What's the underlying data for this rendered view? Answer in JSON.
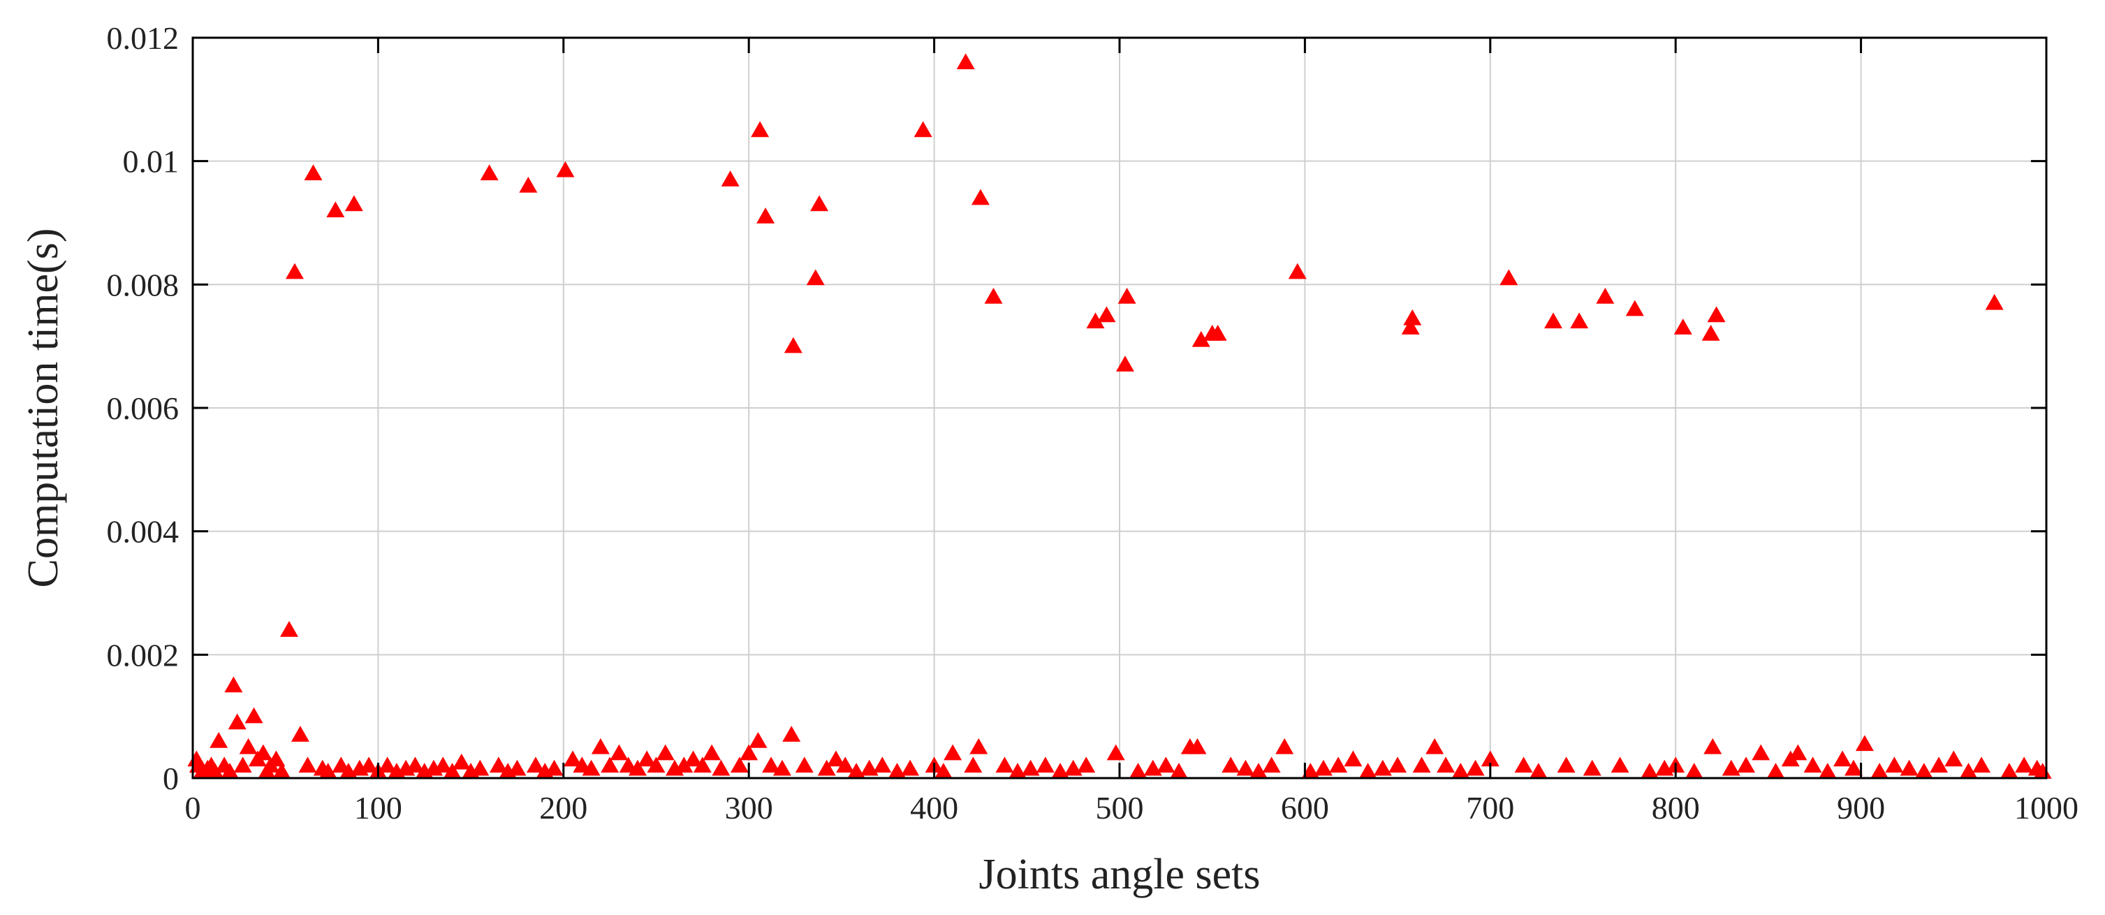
{
  "chart_data": {
    "type": "scatter",
    "xlabel": "Joints angle sets",
    "ylabel": "Computation time(s)",
    "xlim": [
      0,
      1000
    ],
    "ylim": [
      0,
      0.012
    ],
    "x_ticks": [
      "0",
      "100",
      "200",
      "300",
      "400",
      "500",
      "600",
      "700",
      "800",
      "900",
      "1000"
    ],
    "y_ticks": [
      "0",
      "0.002",
      "0.004",
      "0.006",
      "0.008",
      "0.01",
      "0.012"
    ],
    "grid": true,
    "marker": "triangle",
    "marker_color": "#ff0000",
    "series": [
      {
        "points": [
          [
            2,
            0.0003
          ],
          [
            3,
            0.0002
          ],
          [
            5,
            0.0001
          ],
          [
            8,
            0.00015
          ],
          [
            10,
            0.0002
          ],
          [
            12,
            0.0001
          ],
          [
            14,
            0.0006
          ],
          [
            17,
            0.0002
          ],
          [
            20,
            0.0001
          ],
          [
            22,
            0.0015
          ],
          [
            24,
            0.0009
          ],
          [
            27,
            0.0002
          ],
          [
            30,
            0.0005
          ],
          [
            33,
            0.001
          ],
          [
            35,
            0.0003
          ],
          [
            38,
            0.0004
          ],
          [
            40,
            0.0001
          ],
          [
            42,
            0.0002
          ],
          [
            45,
            0.0003
          ],
          [
            48,
            0.0001
          ],
          [
            52,
            0.0024
          ],
          [
            55,
            0.0082
          ],
          [
            58,
            0.0007
          ],
          [
            62,
            0.0002
          ],
          [
            65,
            0.0098
          ],
          [
            70,
            0.00015
          ],
          [
            73,
            0.0001
          ],
          [
            77,
            0.0092
          ],
          [
            80,
            0.0002
          ],
          [
            84,
            0.0001
          ],
          [
            87,
            0.0093
          ],
          [
            90,
            0.00015
          ],
          [
            95,
            0.0002
          ],
          [
            100,
            0.0001
          ],
          [
            105,
            0.0002
          ],
          [
            110,
            0.0001
          ],
          [
            115,
            0.00015
          ],
          [
            120,
            0.0002
          ],
          [
            125,
            0.0001
          ],
          [
            130,
            0.00015
          ],
          [
            135,
            0.0002
          ],
          [
            140,
            0.0001
          ],
          [
            145,
            0.00025
          ],
          [
            150,
            0.0001
          ],
          [
            155,
            0.00015
          ],
          [
            160,
            0.0098
          ],
          [
            165,
            0.0002
          ],
          [
            170,
            0.0001
          ],
          [
            175,
            0.00015
          ],
          [
            181,
            0.0096
          ],
          [
            185,
            0.0002
          ],
          [
            190,
            0.0001
          ],
          [
            195,
            0.00015
          ],
          [
            201,
            0.00985
          ],
          [
            205,
            0.0003
          ],
          [
            210,
            0.0002
          ],
          [
            215,
            0.00015
          ],
          [
            220,
            0.0005
          ],
          [
            225,
            0.0002
          ],
          [
            230,
            0.0004
          ],
          [
            235,
            0.0002
          ],
          [
            240,
            0.00015
          ],
          [
            245,
            0.0003
          ],
          [
            250,
            0.0002
          ],
          [
            255,
            0.0004
          ],
          [
            260,
            0.00015
          ],
          [
            265,
            0.0002
          ],
          [
            270,
            0.0003
          ],
          [
            275,
            0.0002
          ],
          [
            280,
            0.0004
          ],
          [
            285,
            0.00015
          ],
          [
            290,
            0.0097
          ],
          [
            295,
            0.0002
          ],
          [
            300,
            0.0004
          ],
          [
            305,
            0.0006
          ],
          [
            306,
            0.0105
          ],
          [
            309,
            0.0091
          ],
          [
            312,
            0.0002
          ],
          [
            318,
            0.00015
          ],
          [
            323,
            0.0007
          ],
          [
            324,
            0.007
          ],
          [
            330,
            0.0002
          ],
          [
            336,
            0.0081
          ],
          [
            338,
            0.0093
          ],
          [
            342,
            0.00015
          ],
          [
            347,
            0.0003
          ],
          [
            352,
            0.0002
          ],
          [
            358,
            0.0001
          ],
          [
            365,
            0.00015
          ],
          [
            372,
            0.0002
          ],
          [
            380,
            0.0001
          ],
          [
            387,
            0.00015
          ],
          [
            394,
            0.0105
          ],
          [
            400,
            0.0002
          ],
          [
            405,
            0.0001
          ],
          [
            410,
            0.0004
          ],
          [
            417,
            0.0116
          ],
          [
            421,
            0.0002
          ],
          [
            424,
            0.0005
          ],
          [
            425,
            0.0094
          ],
          [
            432,
            0.0078
          ],
          [
            438,
            0.0002
          ],
          [
            445,
            0.0001
          ],
          [
            452,
            0.00015
          ],
          [
            460,
            0.0002
          ],
          [
            468,
            0.0001
          ],
          [
            475,
            0.00015
          ],
          [
            482,
            0.0002
          ],
          [
            487,
            0.0074
          ],
          [
            493,
            0.0075
          ],
          [
            498,
            0.0004
          ],
          [
            503,
            0.0067
          ],
          [
            504,
            0.0078
          ],
          [
            510,
            0.0001
          ],
          [
            518,
            0.00015
          ],
          [
            525,
            0.0002
          ],
          [
            532,
            0.0001
          ],
          [
            538,
            0.0005
          ],
          [
            542,
            0.0005
          ],
          [
            544,
            0.0071
          ],
          [
            550,
            0.0072
          ],
          [
            553,
            0.0072
          ],
          [
            560,
            0.0002
          ],
          [
            568,
            0.00015
          ],
          [
            575,
            0.0001
          ],
          [
            582,
            0.0002
          ],
          [
            589,
            0.0005
          ],
          [
            596,
            0.0082
          ],
          [
            603,
            0.0001
          ],
          [
            610,
            0.00015
          ],
          [
            618,
            0.0002
          ],
          [
            626,
            0.0003
          ],
          [
            634,
            0.0001
          ],
          [
            642,
            0.00015
          ],
          [
            650,
            0.0002
          ],
          [
            657,
            0.0073
          ],
          [
            658,
            0.00745
          ],
          [
            663,
            0.0002
          ],
          [
            670,
            0.0005
          ],
          [
            676,
            0.0002
          ],
          [
            684,
            0.0001
          ],
          [
            692,
            0.00015
          ],
          [
            700,
            0.0003
          ],
          [
            710,
            0.0081
          ],
          [
            718,
            0.0002
          ],
          [
            726,
            0.0001
          ],
          [
            734,
            0.0074
          ],
          [
            741,
            0.0002
          ],
          [
            748,
            0.0074
          ],
          [
            755,
            0.00015
          ],
          [
            762,
            0.0078
          ],
          [
            770,
            0.0002
          ],
          [
            778,
            0.0076
          ],
          [
            786,
            0.0001
          ],
          [
            794,
            0.00015
          ],
          [
            800,
            0.0002
          ],
          [
            804,
            0.0073
          ],
          [
            810,
            0.0001
          ],
          [
            819,
            0.0072
          ],
          [
            820,
            0.0005
          ],
          [
            822,
            0.0075
          ],
          [
            830,
            0.00015
          ],
          [
            838,
            0.0002
          ],
          [
            846,
            0.0004
          ],
          [
            854,
            0.0001
          ],
          [
            862,
            0.0003
          ],
          [
            866,
            0.0004
          ],
          [
            874,
            0.0002
          ],
          [
            882,
            0.0001
          ],
          [
            890,
            0.0003
          ],
          [
            896,
            0.00015
          ],
          [
            902,
            0.00055
          ],
          [
            910,
            0.0001
          ],
          [
            918,
            0.0002
          ],
          [
            926,
            0.00015
          ],
          [
            934,
            0.0001
          ],
          [
            942,
            0.0002
          ],
          [
            950,
            0.0003
          ],
          [
            958,
            0.0001
          ],
          [
            965,
            0.0002
          ],
          [
            972,
            0.0077
          ],
          [
            980,
            0.0001
          ],
          [
            988,
            0.0002
          ],
          [
            995,
            0.00015
          ],
          [
            998,
            0.0001
          ]
        ]
      }
    ]
  }
}
